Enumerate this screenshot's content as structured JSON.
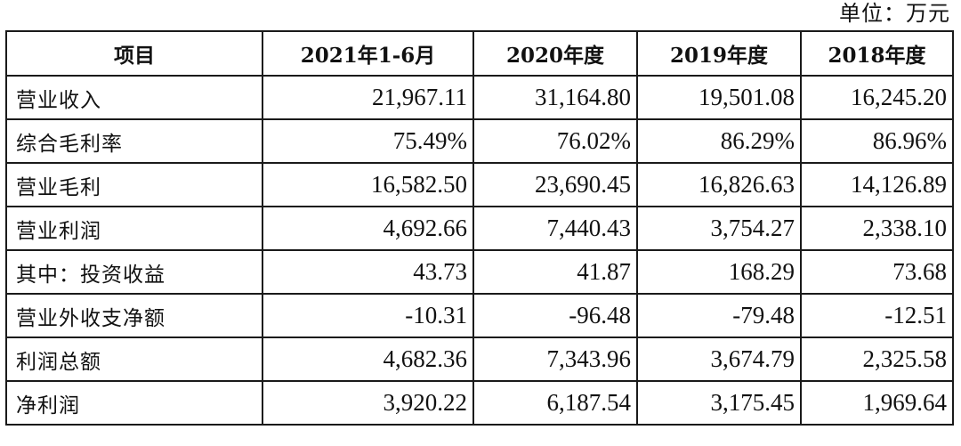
{
  "unit_label": "单位：万元",
  "table": {
    "headers": [
      "项目",
      "2021年1-6月",
      "2020年度",
      "2019年度",
      "2018年度"
    ],
    "rows": [
      {
        "label": "营业收入",
        "values": [
          "21,967.11",
          "31,164.80",
          "19,501.08",
          "16,245.20"
        ]
      },
      {
        "label": "综合毛利率",
        "values": [
          "75.49%",
          "76.02%",
          "86.29%",
          "86.96%"
        ]
      },
      {
        "label": "营业毛利",
        "values": [
          "16,582.50",
          "23,690.45",
          "16,826.63",
          "14,126.89"
        ]
      },
      {
        "label": "营业利润",
        "values": [
          "4,692.66",
          "7,440.43",
          "3,754.27",
          "2,338.10"
        ]
      },
      {
        "label": "其中：投资收益",
        "values": [
          "43.73",
          "41.87",
          "168.29",
          "73.68"
        ]
      },
      {
        "label": "营业外收支净额",
        "values": [
          "-10.31",
          "-96.48",
          "-79.48",
          "-12.51"
        ]
      },
      {
        "label": "利润总额",
        "values": [
          "4,682.36",
          "7,343.96",
          "3,674.79",
          "2,325.58"
        ]
      },
      {
        "label": "净利润",
        "values": [
          "3,920.22",
          "6,187.54",
          "3,175.45",
          "1,969.64"
        ]
      }
    ]
  }
}
